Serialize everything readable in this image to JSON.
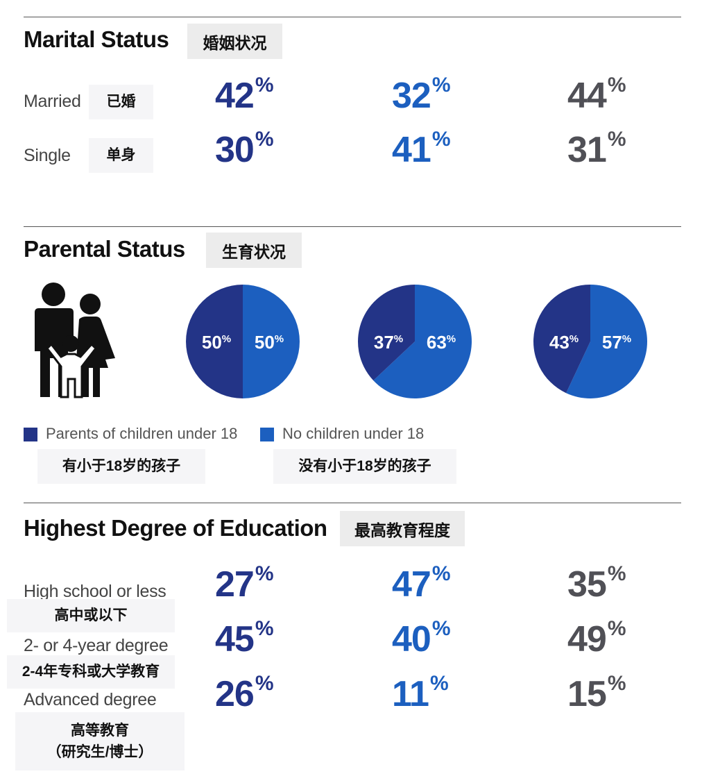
{
  "colors": {
    "navy": "#233487",
    "blue": "#1c5fbf",
    "gray": "#505056",
    "icon": "#111111"
  },
  "marital": {
    "title": "Marital Status",
    "title_cn": "婚姻状况",
    "rows": [
      {
        "label": "Married",
        "label_cn": "已婚",
        "values": [
          "42",
          "32",
          "44"
        ]
      },
      {
        "label": "Single",
        "label_cn": "单身",
        "values": [
          "30",
          "41",
          "31"
        ]
      }
    ]
  },
  "parental": {
    "title": "Parental Status",
    "title_cn": "生育状况",
    "icon": "family-icon",
    "legend": [
      {
        "label": "Parents of children under 18",
        "label_cn": "有小于18岁的孩子",
        "color": "#233487"
      },
      {
        "label": "No children under 18",
        "label_cn": "没有小于18岁的孩子",
        "color": "#1c5fbf"
      }
    ]
  },
  "education": {
    "title": "Highest Degree of Education",
    "title_cn": "最高教育程度",
    "rows": [
      {
        "label": "High school or less",
        "label_cn": "高中或以下",
        "values": [
          "27",
          "47",
          "35"
        ]
      },
      {
        "label": "2- or 4-year degree",
        "label_cn": "2-4年专科或大学教育",
        "values": [
          "45",
          "40",
          "49"
        ]
      },
      {
        "label": "Advanced degree",
        "label_cn_line1": "高等教育",
        "label_cn_line2": "（研究生/博士）",
        "values": [
          "26",
          "11",
          "15"
        ]
      }
    ]
  },
  "pct_symbol": "%",
  "chart_data": [
    {
      "type": "pie",
      "categories": [
        "Parents of children under 18",
        "No children under 18"
      ],
      "values": [
        50,
        50
      ],
      "labels": [
        "50%",
        "50%"
      ]
    },
    {
      "type": "pie",
      "categories": [
        "Parents of children under 18",
        "No children under 18"
      ],
      "values": [
        37,
        63
      ],
      "labels": [
        "37%",
        "63%"
      ]
    },
    {
      "type": "pie",
      "categories": [
        "Parents of children under 18",
        "No children under 18"
      ],
      "values": [
        43,
        57
      ],
      "labels": [
        "43%",
        "57%"
      ]
    }
  ]
}
